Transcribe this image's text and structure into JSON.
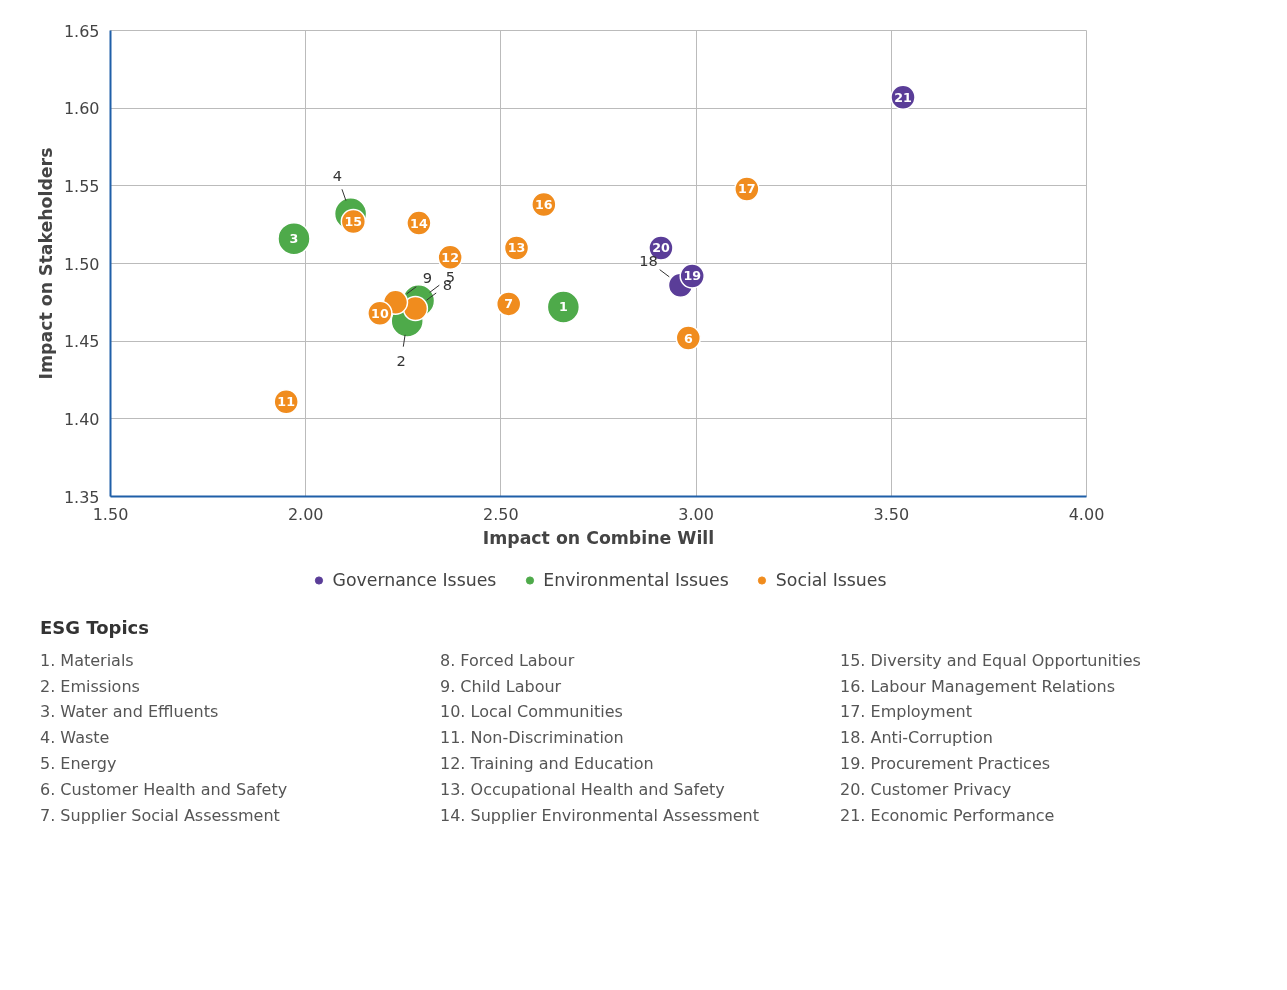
{
  "chart_data": {
    "type": "scatter",
    "xlabel": "Impact on Combine Will",
    "ylabel": "Impact on Stakeholders",
    "xlim": [
      1.5,
      4.0
    ],
    "ylim": [
      1.35,
      1.65
    ],
    "xticks": [
      {
        "value": 1.5,
        "label": "1.50"
      },
      {
        "value": 2.0,
        "label": "2.00"
      },
      {
        "value": 2.5,
        "label": "2.50"
      },
      {
        "value": 3.0,
        "label": "3.00"
      },
      {
        "value": 3.5,
        "label": "3.50"
      },
      {
        "value": 4.0,
        "label": "4.00"
      }
    ],
    "yticks": [
      {
        "value": 1.35,
        "label": "1.35"
      },
      {
        "value": 1.4,
        "label": "1.40"
      },
      {
        "value": 1.45,
        "label": "1.45"
      },
      {
        "value": 1.5,
        "label": "1.50"
      },
      {
        "value": 1.55,
        "label": "1.55"
      },
      {
        "value": 1.6,
        "label": "1.60"
      },
      {
        "value": 1.65,
        "label": "1.65"
      }
    ],
    "grid": true,
    "legend": "bottom",
    "marker": "circle",
    "series": [
      {
        "name": "Governance Issues",
        "color": "#5a3d98",
        "x": [
          2.96,
          2.99,
          2.91,
          3.53
        ],
        "values": [
          1.486,
          1.492,
          1.51,
          1.607
        ]
      },
      {
        "name": "Environmental Issues",
        "color": "#4eaa4a",
        "x": [
          2.66,
          2.26,
          1.97,
          2.115,
          2.289
        ],
        "values": [
          1.472,
          1.463,
          1.516,
          1.532,
          1.476
        ]
      },
      {
        "name": "Social Issues",
        "color": "#f08c1e",
        "x": [
          2.98,
          2.52,
          2.281,
          2.23,
          2.19,
          1.95,
          2.37,
          2.54,
          2.29,
          2.122,
          2.61,
          3.13
        ],
        "values": [
          1.452,
          1.474,
          1.471,
          1.475,
          1.468,
          1.411,
          1.504,
          1.51,
          1.526,
          1.527,
          1.538,
          1.548
        ]
      }
    ],
    "annotations": [
      {
        "text": "18",
        "x": 2.96,
        "y": 1.486
      },
      {
        "text": "19",
        "x": 2.99,
        "y": 1.492
      },
      {
        "text": "20",
        "x": 2.91,
        "y": 1.51
      },
      {
        "text": "21",
        "x": 3.53,
        "y": 1.607
      },
      {
        "text": "1",
        "x": 2.66,
        "y": 1.472
      },
      {
        "text": "2",
        "x": 2.26,
        "y": 1.463
      },
      {
        "text": "3",
        "x": 1.97,
        "y": 1.516
      },
      {
        "text": "4",
        "x": 2.115,
        "y": 1.532
      },
      {
        "text": "5",
        "x": 2.289,
        "y": 1.476
      },
      {
        "text": "6",
        "x": 2.98,
        "y": 1.452
      },
      {
        "text": "7",
        "x": 2.52,
        "y": 1.474
      },
      {
        "text": "8",
        "x": 2.281,
        "y": 1.471
      },
      {
        "text": "9",
        "x": 2.23,
        "y": 1.475
      },
      {
        "text": "10",
        "x": 2.19,
        "y": 1.468
      },
      {
        "text": "11",
        "x": 1.95,
        "y": 1.411
      },
      {
        "text": "12",
        "x": 2.37,
        "y": 1.504
      },
      {
        "text": "13",
        "x": 2.54,
        "y": 1.51
      },
      {
        "text": "14",
        "x": 2.29,
        "y": 1.526
      },
      {
        "text": "15",
        "x": 2.122,
        "y": 1.527
      },
      {
        "text": "16",
        "x": 2.61,
        "y": 1.538
      },
      {
        "text": "17",
        "x": 3.13,
        "y": 1.548
      },
      "ESG Topics",
      "1. Materials",
      "2. Emissions",
      "3. Water and Effluents",
      "4. Waste",
      "5. Energy",
      "6. Customer Health and Safety",
      "7. Supplier Social Assessment",
      "8. Forced Labour",
      "9. Child Labour",
      "10. Local Communities",
      "11. Non-Discrimination",
      "12. Training and Education",
      "13. Occupational Health and Safety",
      "14. Supplier Environmental Assessment",
      "15. Diversity and Equal Opportunities",
      "16. Labour Management Relations",
      "17. Employment",
      "18. Anti-Corruption",
      "19. Procurement Practices",
      "20. Customer Privacy",
      "21. Economic Performance"
    ]
  }
}
